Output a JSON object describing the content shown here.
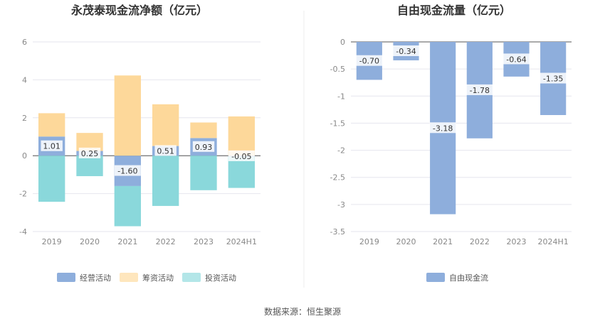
{
  "source": "数据来源：恒生聚源",
  "chart_data": [
    {
      "type": "bar",
      "stacked": true,
      "title": "永茂泰现金流净额（亿元）",
      "categories": [
        "2019",
        "2020",
        "2021",
        "2022",
        "2023",
        "2024H1"
      ],
      "ylim": [
        -4,
        6
      ],
      "yticks": [
        -4,
        -2,
        0,
        2,
        4,
        6
      ],
      "grid": true,
      "legend_position": "bottom",
      "labeled_series": 0,
      "label_texts": [
        "1.01",
        "0.25",
        "-1.60",
        "0.51",
        "0.93",
        "-0.05"
      ],
      "series": [
        {
          "name": "经营活动",
          "color": "#8eaedc",
          "values": [
            1.01,
            0.25,
            -1.6,
            0.51,
            0.93,
            -0.05
          ]
        },
        {
          "name": "筹资活动",
          "color": "#fdd89a",
          "values": [
            1.23,
            0.95,
            4.23,
            2.2,
            0.82,
            2.07
          ]
        },
        {
          "name": "投资活动",
          "color": "#8ad8db",
          "values": [
            -2.43,
            -1.08,
            -2.12,
            -2.65,
            -1.82,
            -1.65
          ]
        }
      ]
    },
    {
      "type": "bar",
      "title": "自由现金流量（亿元）",
      "categories": [
        "2019",
        "2020",
        "2021",
        "2022",
        "2023",
        "2024H1"
      ],
      "ylim": [
        -3.5,
        0
      ],
      "yticks": [
        -3.5,
        -3,
        -2.5,
        -2,
        -1.5,
        -1,
        -0.5,
        0
      ],
      "ytick_labels": [
        "-3.5",
        "-3",
        "-2.5",
        "-2",
        "-1.5",
        "-1",
        "-0.5",
        "0"
      ],
      "grid": true,
      "legend_position": "bottom",
      "labeled_series": 0,
      "label_texts": [
        "-0.70",
        "-0.34",
        "-3.18",
        "-1.78",
        "-0.64",
        "-1.35"
      ],
      "series": [
        {
          "name": "自由现金流",
          "color": "#8eaedc",
          "values": [
            -0.7,
            -0.34,
            -3.18,
            -1.78,
            -0.64,
            -1.35
          ]
        }
      ]
    }
  ]
}
